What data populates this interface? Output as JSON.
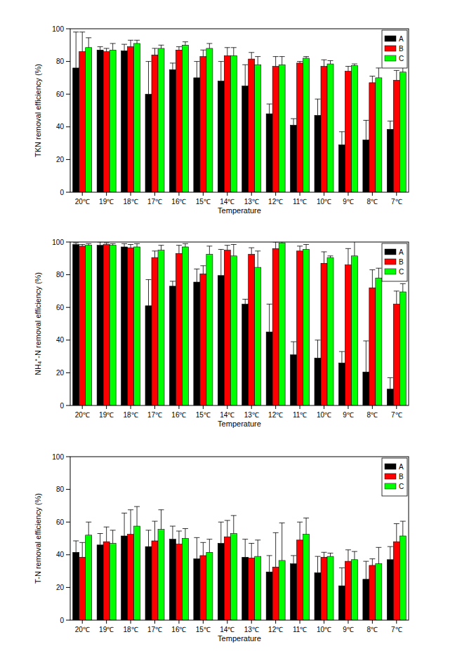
{
  "chart_data": [
    {
      "type": "bar",
      "y_label": "TKN removal efficiency (%)",
      "x_label": "Temperature",
      "categories": [
        "20℃",
        "19℃",
        "18℃",
        "17℃",
        "16℃",
        "15℃",
        "14℃",
        "13℃",
        "12℃",
        "11℃",
        "10℃",
        "9℃",
        "8℃",
        "7℃"
      ],
      "ylim": [
        0,
        100
      ],
      "yticks": [
        0,
        20,
        40,
        60,
        80,
        100
      ],
      "legend": "upper right",
      "grid": false,
      "series": [
        {
          "name": "A",
          "color": "#000000",
          "values": [
            76,
            87,
            86.5,
            60,
            75,
            70,
            68,
            65,
            48,
            41,
            47,
            29,
            32,
            38.5
          ],
          "errors": [
            22,
            2,
            4,
            20,
            4,
            10,
            12,
            13,
            6,
            4,
            10,
            8,
            12,
            5
          ]
        },
        {
          "name": "B",
          "color": "#ff0000",
          "values": [
            86,
            86,
            89,
            84,
            87,
            83,
            83.5,
            81.5,
            77,
            79,
            77,
            74,
            67,
            68.5
          ],
          "errors": [
            12,
            2,
            4,
            4,
            2,
            4,
            5,
            4,
            6,
            1,
            4,
            3,
            4,
            6
          ]
        },
        {
          "name": "C",
          "color": "#00ff00",
          "values": [
            88.5,
            87,
            91,
            88,
            90,
            88,
            83.5,
            78,
            78,
            82,
            78.5,
            77.5,
            70,
            73.5
          ],
          "errors": [
            6,
            4,
            2,
            2,
            2,
            3,
            5,
            5,
            5,
            1,
            2,
            1,
            6,
            3
          ]
        }
      ]
    },
    {
      "type": "bar",
      "y_label": "NH₄⁺-N removal efficiency (%)",
      "x_label": "Temperature",
      "categories": [
        "20℃",
        "19℃",
        "18℃",
        "17℃",
        "16℃",
        "15℃",
        "14℃",
        "13℃",
        "12℃",
        "11℃",
        "10℃",
        "9℃",
        "8℃",
        "7℃"
      ],
      "ylim": [
        0,
        100
      ],
      "yticks": [
        0,
        20,
        40,
        60,
        80,
        100
      ],
      "legend": "upper right",
      "grid": false,
      "series": [
        {
          "name": "A",
          "color": "#000000",
          "values": [
            98.5,
            98,
            97,
            61,
            73,
            75.5,
            79.5,
            62,
            45,
            31,
            29,
            26,
            20.5,
            10
          ],
          "errors": [
            1,
            2,
            2,
            16,
            3,
            8,
            16,
            3,
            17,
            8,
            11,
            7,
            19,
            7
          ]
        },
        {
          "name": "B",
          "color": "#ff0000",
          "values": [
            97.5,
            98.5,
            96.5,
            90.5,
            93,
            80.5,
            95,
            92.5,
            96,
            94.5,
            87,
            86,
            72,
            62
          ],
          "errors": [
            1,
            1,
            2,
            4,
            5,
            5,
            3,
            4,
            4,
            3,
            7,
            10,
            11,
            8
          ]
        },
        {
          "name": "C",
          "color": "#00ff00",
          "values": [
            98,
            98,
            97,
            95,
            97,
            92.5,
            91.5,
            84.5,
            99.5,
            95.5,
            90.5,
            91.5,
            78,
            69.5
          ],
          "errors": [
            1,
            1,
            2,
            3,
            2,
            5,
            7,
            10,
            1,
            3,
            1,
            10,
            6,
            5
          ]
        }
      ]
    },
    {
      "type": "bar",
      "y_label": "T-N removal efficiency (%)",
      "x_label": "Temperature",
      "categories": [
        "20℃",
        "19℃",
        "18℃",
        "17℃",
        "16℃",
        "15℃",
        "14℃",
        "13℃",
        "12℃",
        "11℃",
        "10℃",
        "9℃",
        "8℃",
        "7℃"
      ],
      "ylim": [
        0,
        100
      ],
      "yticks": [
        0,
        20,
        40,
        60,
        80,
        100
      ],
      "legend": "upper right",
      "grid": false,
      "series": [
        {
          "name": "A",
          "color": "#000000",
          "values": [
            41.5,
            46,
            51.5,
            45,
            49.5,
            37.5,
            47,
            38.5,
            29.5,
            34.5,
            29,
            21,
            25,
            37
          ],
          "errors": [
            7,
            7,
            14,
            10,
            8,
            13,
            13,
            11,
            10,
            5,
            10,
            11,
            11,
            8
          ]
        },
        {
          "name": "B",
          "color": "#ff0000",
          "values": [
            38.5,
            48,
            52.5,
            48.5,
            46.5,
            39.5,
            51,
            38,
            32.5,
            49,
            38.5,
            36,
            33.5,
            48
          ],
          "errors": [
            9,
            9,
            15,
            12,
            8,
            8,
            10,
            9,
            21,
            11,
            3,
            7,
            4,
            11
          ]
        },
        {
          "name": "C",
          "color": "#00ff00",
          "values": [
            52,
            47,
            57.5,
            55.5,
            50,
            41.5,
            53,
            39,
            36.5,
            52.5,
            39,
            37,
            34.5,
            51.5
          ],
          "errors": [
            8,
            8,
            12,
            12,
            6,
            8,
            11,
            10,
            23,
            10,
            2,
            5,
            10,
            9
          ]
        }
      ]
    }
  ]
}
